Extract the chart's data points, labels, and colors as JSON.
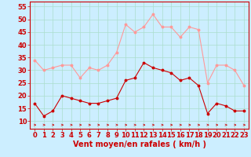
{
  "hours": [
    0,
    1,
    2,
    3,
    4,
    5,
    6,
    7,
    8,
    9,
    10,
    11,
    12,
    13,
    14,
    15,
    16,
    17,
    18,
    19,
    20,
    21,
    22,
    23
  ],
  "wind_avg": [
    17,
    12,
    14,
    20,
    19,
    18,
    17,
    17,
    18,
    19,
    26,
    27,
    33,
    31,
    30,
    29,
    26,
    27,
    24,
    13,
    17,
    16,
    14,
    14
  ],
  "wind_gust": [
    34,
    30,
    31,
    32,
    32,
    27,
    31,
    30,
    32,
    37,
    48,
    45,
    47,
    52,
    47,
    47,
    43,
    47,
    46,
    25,
    32,
    32,
    30,
    24
  ],
  "avg_color": "#cc0000",
  "gust_color": "#ff9999",
  "bg_color": "#cceeff",
  "grid_color": "#aaddcc",
  "xlabel": "Vent moyen/en rafales ( km/h )",
  "ylabel_ticks": [
    10,
    15,
    20,
    25,
    30,
    35,
    40,
    45,
    50,
    55
  ],
  "ylim": [
    7,
    57
  ],
  "xlim": [
    -0.5,
    23.5
  ],
  "axis_fontsize": 7,
  "tick_fontsize": 6
}
